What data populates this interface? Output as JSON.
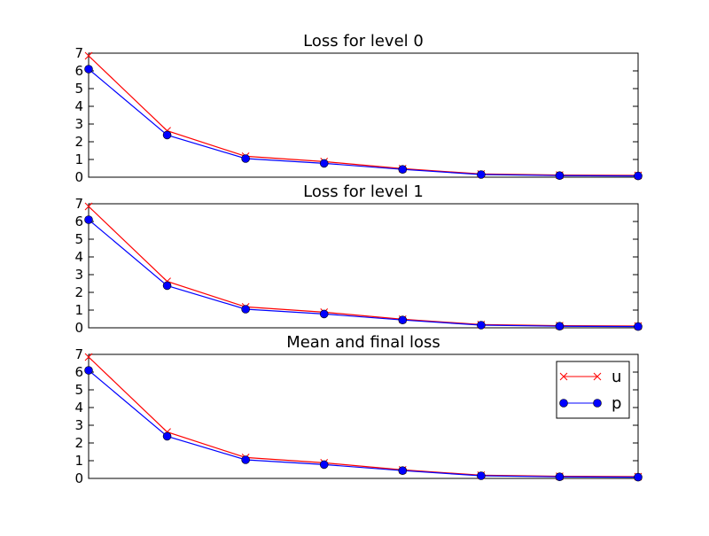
{
  "chart_data": [
    {
      "type": "line",
      "title": "Loss for level 0",
      "xlabel": "",
      "ylabel": "",
      "x": [
        0,
        1,
        2,
        3,
        4,
        5,
        6,
        7
      ],
      "ylim": [
        0,
        7
      ],
      "yticks": [
        "0",
        "1",
        "2",
        "3",
        "4",
        "5",
        "6",
        "7"
      ],
      "show_xticks": false,
      "grid": false,
      "series": [
        {
          "name": "u",
          "color": "#ff0000",
          "marker": "x",
          "values": [
            6.85,
            2.62,
            1.18,
            0.88,
            0.48,
            0.18,
            0.12,
            0.1
          ]
        },
        {
          "name": "p",
          "color": "#0000ff",
          "marker": "circle",
          "values": [
            6.1,
            2.38,
            1.05,
            0.78,
            0.44,
            0.15,
            0.09,
            0.07
          ]
        }
      ]
    },
    {
      "type": "line",
      "title": "Loss for level 1",
      "xlabel": "",
      "ylabel": "",
      "x": [
        0,
        1,
        2,
        3,
        4,
        5,
        6,
        7
      ],
      "ylim": [
        0,
        7
      ],
      "yticks": [
        "0",
        "1",
        "2",
        "3",
        "4",
        "5",
        "6",
        "7"
      ],
      "show_xticks": false,
      "grid": false,
      "series": [
        {
          "name": "u",
          "color": "#ff0000",
          "marker": "x",
          "values": [
            6.85,
            2.62,
            1.18,
            0.88,
            0.48,
            0.18,
            0.12,
            0.1
          ]
        },
        {
          "name": "p",
          "color": "#0000ff",
          "marker": "circle",
          "values": [
            6.1,
            2.38,
            1.05,
            0.78,
            0.44,
            0.15,
            0.09,
            0.07
          ]
        }
      ]
    },
    {
      "type": "line",
      "title": "Mean and final loss",
      "xlabel": "",
      "ylabel": "",
      "x": [
        0,
        1,
        2,
        3,
        4,
        5,
        6,
        7
      ],
      "ylim": [
        0,
        7
      ],
      "yticks": [
        "0",
        "1",
        "2",
        "3",
        "4",
        "5",
        "6",
        "7"
      ],
      "show_xticks": false,
      "grid": false,
      "legend": {
        "placement": "top-right",
        "entries": [
          "u",
          "p"
        ]
      },
      "series": [
        {
          "name": "u",
          "color": "#ff0000",
          "marker": "x",
          "values": [
            6.85,
            2.62,
            1.18,
            0.88,
            0.48,
            0.18,
            0.12,
            0.1
          ]
        },
        {
          "name": "p",
          "color": "#0000ff",
          "marker": "circle",
          "values": [
            6.1,
            2.38,
            1.05,
            0.78,
            0.44,
            0.15,
            0.09,
            0.07
          ]
        }
      ]
    }
  ]
}
